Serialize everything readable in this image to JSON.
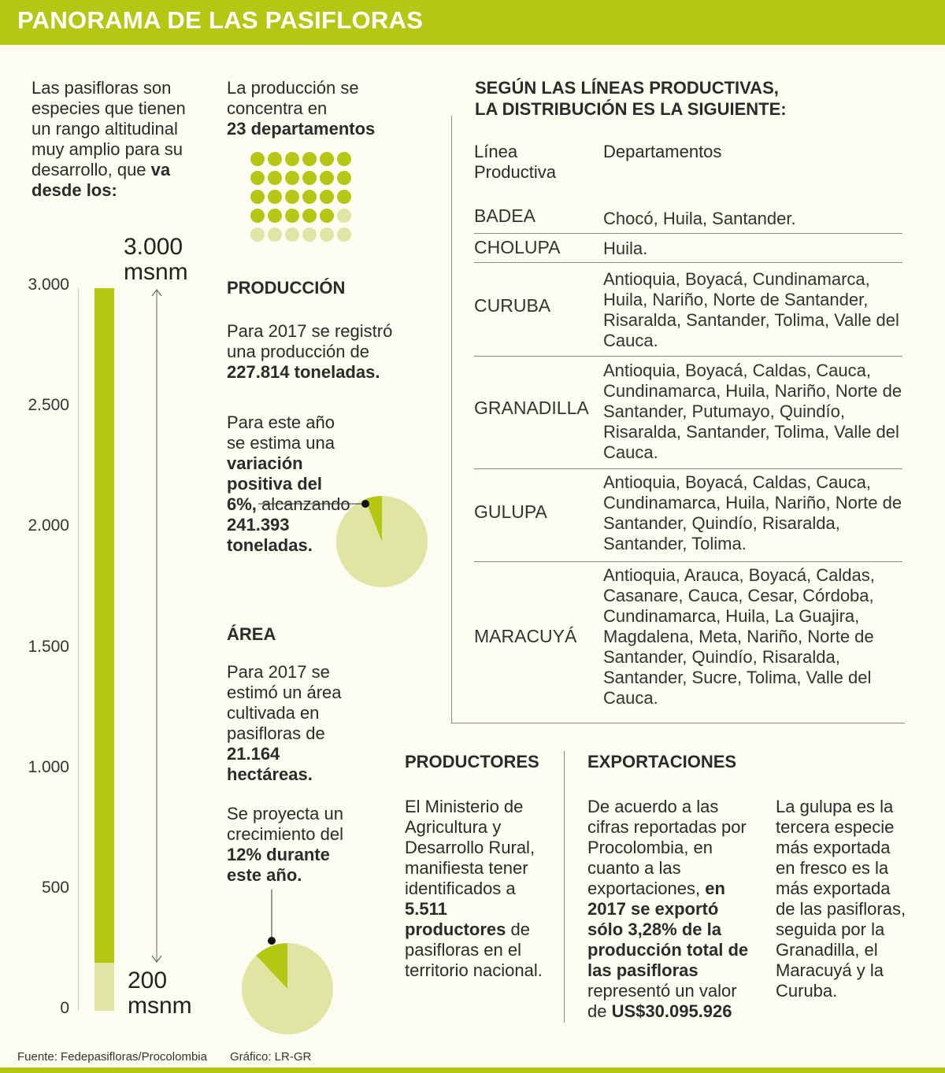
{
  "title": "PANORAMA DE LAS PASIFLORAS",
  "intro": {
    "text": "Las pasifloras son especies que tienen un rango altitudinal muy amplio para su desarrollo, que ",
    "bold": "va desde los:"
  },
  "altitude": {
    "max_label": "3.000 msnm",
    "max_line1": "3.000",
    "max_line2": "msnm",
    "min_label": "200 msnm",
    "min_line1": "200",
    "min_line2": "msnm",
    "range_max_msnm": 3000,
    "range_min_msnm": 200,
    "scale_ticks": [
      "3.000",
      "2.500",
      "2.000",
      "1.500",
      "1.000",
      "500",
      "0"
    ]
  },
  "concentration": {
    "text": "La producción se concentra en",
    "bold": "23 departamentos",
    "total_dots": 30,
    "highlighted_dots": 23
  },
  "production": {
    "heading": "PRODUCCIÓN",
    "p1_text": "Para 2017 se registró una producción de ",
    "p1_bold": "227.814 toneladas.",
    "p2_text1": "Para este año se estima una ",
    "p2_bold1": "variación positiva del",
    "p2_text2": "6%,",
    "p2_text3": " alcanzando ",
    "p2_bold2": "241.393 toneladas.",
    "pie_percent": 6
  },
  "area": {
    "heading": "ÁREA",
    "p1_text": "Para 2017 se estimó un área cultivada en pasifloras de ",
    "p1_bold": "21.164 hectáreas.",
    "p2_text": "Se proyecta un crecimiento del ",
    "p2_bold": "12% durante este año.",
    "pie_percent": 12
  },
  "distribution": {
    "heading_line1": "SEGÚN LAS LÍNEAS PRODUCTIVAS,",
    "heading_line2": "LA DISTRIBUCIÓN ES LA SIGUIENTE:",
    "col1": "Línea Productiva",
    "col2": "Departamentos",
    "rows": [
      {
        "line": "BADEA",
        "deps": "Chocó, Huila, Santander."
      },
      {
        "line": "CHOLUPA",
        "deps": "Huila."
      },
      {
        "line": "CURUBA",
        "deps": "Antioquia, Boyacá, Cundinamarca, Huila, Nariño, Norte de Santander, Risaralda, Santander, Tolima, Valle del Cauca."
      },
      {
        "line": "GRANADILLA",
        "deps": "Antioquia, Boyacá, Caldas, Cauca, Cundinamarca, Huila, Nariño, Norte de Santander, Putumayo, Quindío, Risaralda, Santander, Tolima, Valle del Cauca."
      },
      {
        "line": "GULUPA",
        "deps": "Antioquia, Boyacá, Caldas, Cauca, Cundinamarca, Huila, Nariño, Norte de Santander, Quindío, Risaralda, Santander, Tolima."
      },
      {
        "line": "MARACUYÁ",
        "deps": "Antioquia, Arauca, Boyacá, Caldas, Casanare, Cauca, Cesar, Córdoba, Cundinamarca, Huila, La Guajira, Magdalena, Meta, Nariño, Norte de Santander, Quindío, Risaralda, Santander, Sucre, Tolima, Valle del Cauca."
      }
    ]
  },
  "producers": {
    "heading": "PRODUCTORES",
    "text1": "El Ministerio de Agricultura y Desarrollo Rural, manifiesta tener identificados a ",
    "bold": "5.511 productores",
    "text2": " de pasifloras en el territorio nacional."
  },
  "exports": {
    "heading": "EXPORTACIONES",
    "text1": "De acuerdo a las cifras reportadas por Procolombia, en cuanto a las exportaciones, ",
    "bold1": "en 2017 se exportó sólo 3,28% de la producción total de las pasifloras",
    "text2": " representó un valor de ",
    "bold2": "US$30.095.926",
    "side_text": "La gulupa es la tercera especie más exportada en fresco es la más exportada de las pasifloras, seguida por la Granadilla, el Maracuyá y la Curuba."
  },
  "footer": {
    "source": "Fuente: Fedepasifloras/Procolombia",
    "graphic": "Gráfico: LR-GR"
  },
  "colors": {
    "accent": "#b5c712",
    "light": "#e1e5a4",
    "background": "#fcfcf1"
  }
}
